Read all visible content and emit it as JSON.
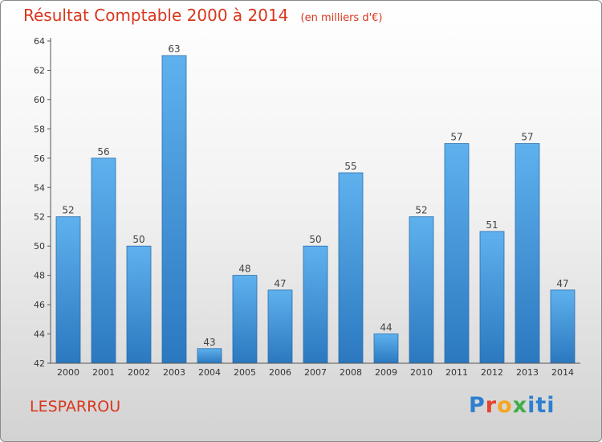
{
  "chart_data": {
    "type": "bar",
    "title": "Résultat Comptable 2000 à 2014",
    "subtitle": "(en milliers d'€)",
    "categories": [
      "2000",
      "2001",
      "2002",
      "2003",
      "2004",
      "2005",
      "2006",
      "2007",
      "2008",
      "2009",
      "2010",
      "2011",
      "2012",
      "2013",
      "2014"
    ],
    "values": [
      52,
      56,
      50,
      63,
      43,
      48,
      47,
      50,
      55,
      44,
      52,
      57,
      51,
      57,
      47
    ],
    "ylim": [
      42,
      64
    ],
    "yticks": [
      42,
      44,
      46,
      48,
      50,
      52,
      54,
      56,
      58,
      60,
      62,
      64
    ],
    "xlabel": "",
    "ylabel": "",
    "grid": false,
    "bar_color": "#3d8fd6"
  },
  "place_name": "LESPARROU",
  "brand": {
    "letters": [
      "P",
      "r",
      "o",
      "x",
      "iti"
    ],
    "colors": [
      "#2f7fd0",
      "#e8412c",
      "#f5a623",
      "#3fae49",
      "#2f7fd0"
    ]
  }
}
